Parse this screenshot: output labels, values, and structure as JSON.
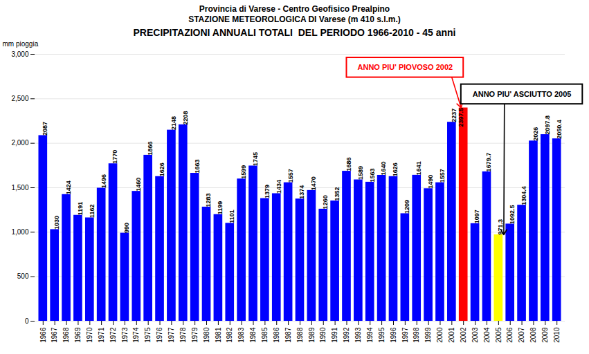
{
  "chart_data": {
    "type": "bar",
    "title": "PRECIPITAZIONI ANNUALI TOTALI  DEL PERIODO 1966-2010 - 45 anni",
    "subtitle": [
      "Provincia di Varese - Centro Geofisico Prealpino",
      "STAZIONE METEOROLOGICA DI Varese (m 410 s.l.m.)"
    ],
    "y_label": "mm pioggia",
    "categories": [
      "1966",
      "1967",
      "1968",
      "1969",
      "1970",
      "1971",
      "1972",
      "1973",
      "1974",
      "1975",
      "1976",
      "1977",
      "1978",
      "1979",
      "1980",
      "1981",
      "1982",
      "1983",
      "1984",
      "1985",
      "1986",
      "1987",
      "1988",
      "1989",
      "1990",
      "1991",
      "1992",
      "1993",
      "1994",
      "1995",
      "1996",
      "1997",
      "1998",
      "1999",
      "2000",
      "2001",
      "2002",
      "2003",
      "2004",
      "2005",
      "2006",
      "2007",
      "2008",
      "2009",
      "2010"
    ],
    "values": [
      2087,
      1030,
      1424,
      1191,
      1162,
      1496,
      1770,
      990,
      1460,
      1866,
      1626,
      2148,
      2208,
      1663,
      1283,
      1199,
      1101,
      1599,
      1745,
      1379,
      1434,
      1557,
      1374,
      1470,
      1260,
      1352,
      1686,
      1589,
      1563,
      1640,
      1626,
      1209,
      1641,
      1490,
      1557,
      2237,
      2397.5,
      1097.0,
      1679.7,
      971.3,
      1092.5,
      1304.4,
      2026.0,
      2097.8,
      2050.4
    ],
    "colors": [
      "blue",
      "blue",
      "blue",
      "blue",
      "blue",
      "blue",
      "blue",
      "blue",
      "blue",
      "blue",
      "blue",
      "blue",
      "blue",
      "blue",
      "blue",
      "blue",
      "blue",
      "blue",
      "blue",
      "blue",
      "blue",
      "blue",
      "blue",
      "blue",
      "blue",
      "blue",
      "blue",
      "blue",
      "blue",
      "blue",
      "blue",
      "blue",
      "blue",
      "blue",
      "blue",
      "blue",
      "red",
      "blue",
      "blue",
      "yellow",
      "blue",
      "blue",
      "blue",
      "blue",
      "blue"
    ],
    "ylim": [
      0,
      3000
    ],
    "yticks": [
      0,
      500,
      1000,
      1500,
      2000,
      2500,
      3000
    ],
    "grid": true,
    "data_labels": true,
    "annotations": [
      {
        "text": "ANNO PIU' PIOVOSO 2002",
        "target": "2002",
        "color": "red"
      },
      {
        "text": "ANNO PIU' ASCIUTTO 2005",
        "target": "2005",
        "color": "black"
      }
    ]
  }
}
